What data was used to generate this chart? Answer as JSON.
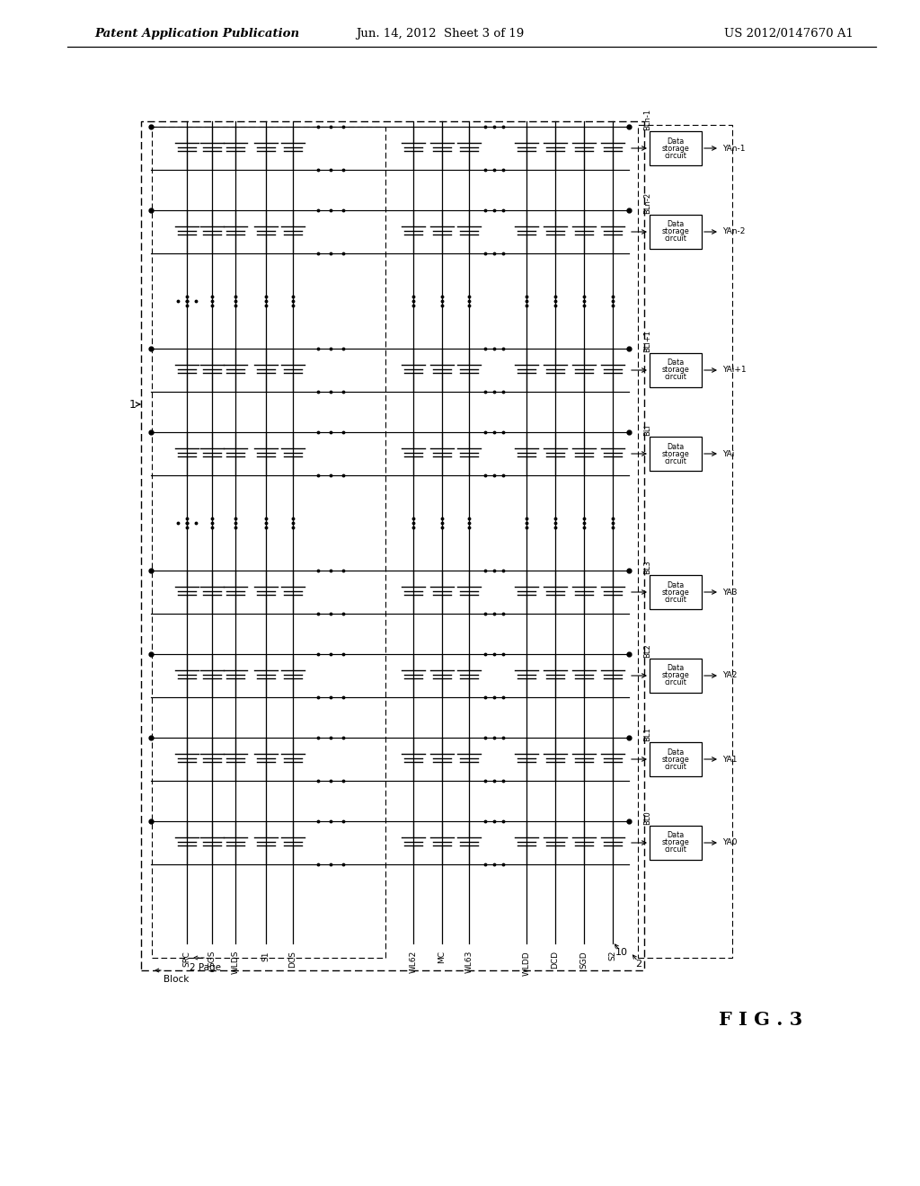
{
  "bg_color": "#ffffff",
  "header_left": "Patent Application Publication",
  "header_mid": "Jun. 14, 2012  Sheet 3 of 19",
  "header_right": "US 2012/0147670 A1",
  "figure_label": "F I G . 3",
  "bl_names": [
    "BLn-1",
    "BLn-2",
    "BLi+1",
    "BLi",
    "BL3",
    "BL2",
    "BL1",
    "BL0"
  ],
  "ya_names": [
    "YAn-1",
    "YAn-2",
    "YAi+1",
    "YAi",
    "YA3",
    "YA2",
    "YA1",
    "YA0"
  ],
  "wl_names": [
    "SRC",
    "SGS",
    "WLDS",
    "S1",
    "DCS",
    "WL62",
    "MC",
    "WL63",
    "WLDD",
    "DCD",
    "SGD",
    "S2"
  ],
  "block_label": "Block",
  "page_label": "2 Page",
  "ref_1": "1",
  "ref_2": "2",
  "ref_10": "10",
  "ref_2b": "2"
}
